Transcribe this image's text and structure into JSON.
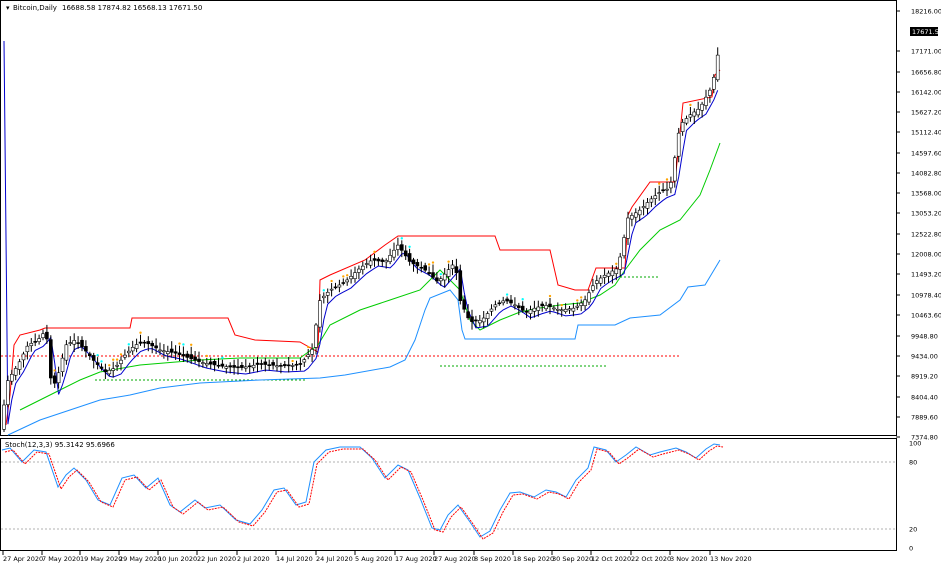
{
  "main_chart": {
    "symbol_label": "Bitcoin,Daily",
    "ohlc_values": "16688.58 17874.82 16568.13 17671.50",
    "price_axis_labels": [
      "18216.00",
      "17671.50",
      "17171.00",
      "16656.80",
      "16142.00",
      "15627.20",
      "15112.40",
      "14597.60",
      "14082.80",
      "13568.00",
      "13053.20",
      "12522.80",
      "12008.00",
      "11493.20",
      "10978.40",
      "10463.60",
      "9948.80",
      "9434.00",
      "8919.20",
      "8404.40",
      "7889.60",
      "7374.80"
    ],
    "current_price_label": "17671.50",
    "colors": {
      "upper_band": "#ff0000",
      "middle_line": "#0000cd",
      "lower_band_green": "#00cc00",
      "lower_band_blue": "#1e90ff",
      "bull_body": "#ffffff",
      "bear_body": "#000000",
      "accent_dots": "#ffa500",
      "accent_dots_2": "#00ffff",
      "support_level": "#ff0000",
      "support_level_2": "#00aa00"
    }
  },
  "stoch_panel": {
    "label": "Stoch(12,3,3) 95.3142 95.6966",
    "axis_labels": [
      "100",
      "80",
      "20",
      "0"
    ],
    "colors": {
      "main": "#1e90ff",
      "signal": "#ff0000"
    }
  },
  "time_axis": {
    "labels": [
      "27 Apr 2020",
      "7 May 2020",
      "19 May 2020",
      "29 May 2020",
      "10 Jun 2020",
      "22 Jun 2020",
      "2 Jul 2020",
      "14 Jul 2020",
      "24 Jul 2020",
      "5 Aug 2020",
      "17 Aug 2020",
      "27 Aug 2020",
      "8 Sep 2020",
      "18 Sep 2020",
      "30 Sep 2020",
      "12 Oct 2020",
      "22 Oct 2020",
      "3 Nov 2020",
      "13 Nov 2020"
    ]
  }
}
